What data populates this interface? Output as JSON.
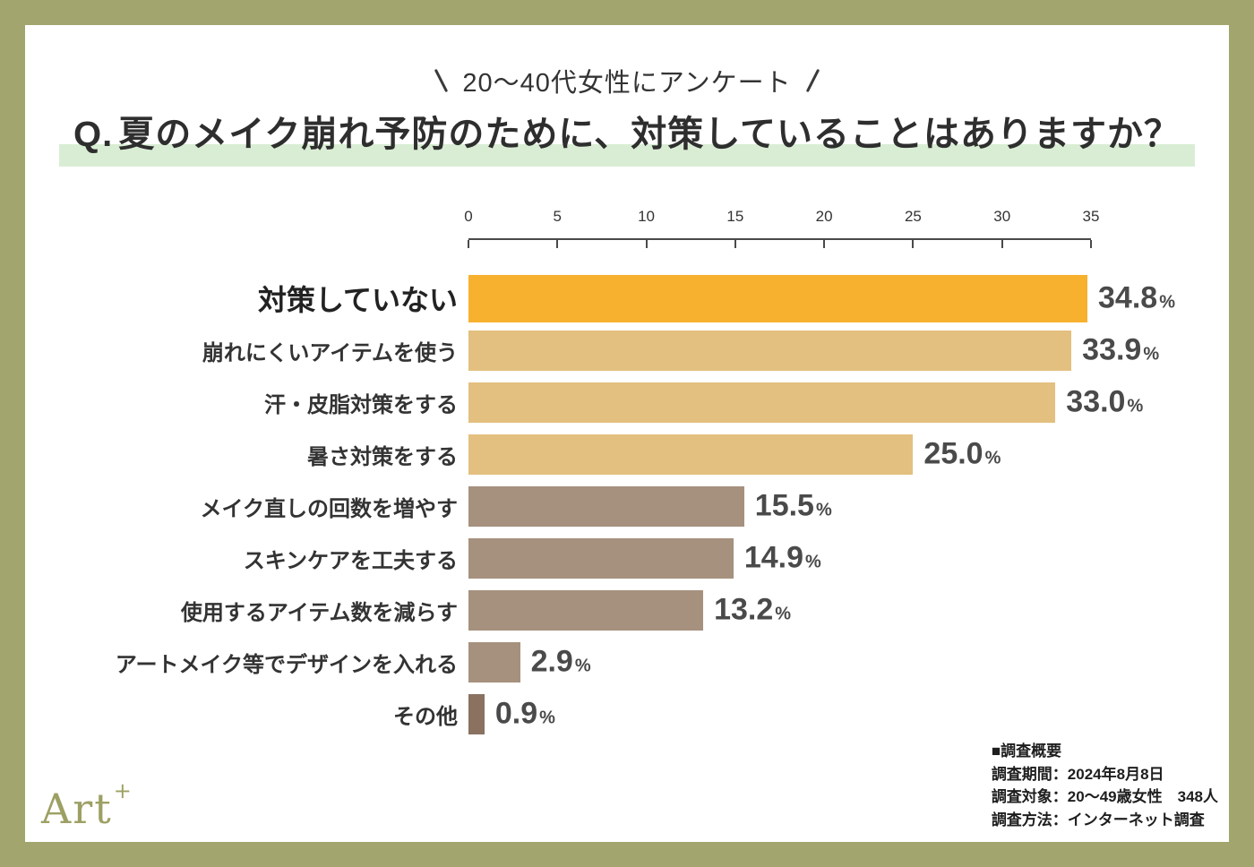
{
  "frame": {
    "border_color": "#a2a56d"
  },
  "header": {
    "subtitle": "20〜40代女性にアンケート",
    "title_q": "Q.",
    "title": "夏のメイク崩れ予防のために、対策していることはありますか？",
    "highlight_color": "#d9edd4"
  },
  "chart_data": {
    "type": "bar",
    "orientation": "horizontal",
    "title": "Q.夏のメイク崩れ予防のために、対策していることはありますか？",
    "x_axis": {
      "ticks": [
        0,
        5,
        10,
        15,
        20,
        25,
        30,
        35
      ],
      "max": 35
    },
    "categories": [
      "対策していない",
      "崩れにくいアイテムを使う",
      "汗・皮脂対策をする",
      "暑さ対策をする",
      "メイク直しの回数を増やす",
      "スキンケアを工夫する",
      "使用するアイテム数を減らす",
      "アートメイク等でデザインを入れる",
      "その他"
    ],
    "values": [
      34.8,
      33.9,
      33.0,
      25.0,
      15.5,
      14.9,
      13.2,
      2.9,
      0.9
    ],
    "value_labels": [
      "34.8",
      "33.9",
      "33.0",
      "25.0",
      "15.5",
      "14.9",
      "13.2",
      "2.9",
      "0.9"
    ],
    "unit": "%",
    "bar_colors": [
      "#f7b12e",
      "#e3c07f",
      "#e3c07f",
      "#e3c07f",
      "#a6917e",
      "#a6917e",
      "#a6917e",
      "#a6917e",
      "#8a7160"
    ],
    "highlight_index": 0,
    "grid": false,
    "legend": false
  },
  "footer": {
    "logo_text": "Art",
    "logo_plus": "+",
    "survey": {
      "heading": "■調査概要",
      "period": "調査期間：2024年8月8日",
      "subject": "調査対象：20〜49歳女性　348人",
      "method": "調査方法：インターネット調査"
    }
  }
}
